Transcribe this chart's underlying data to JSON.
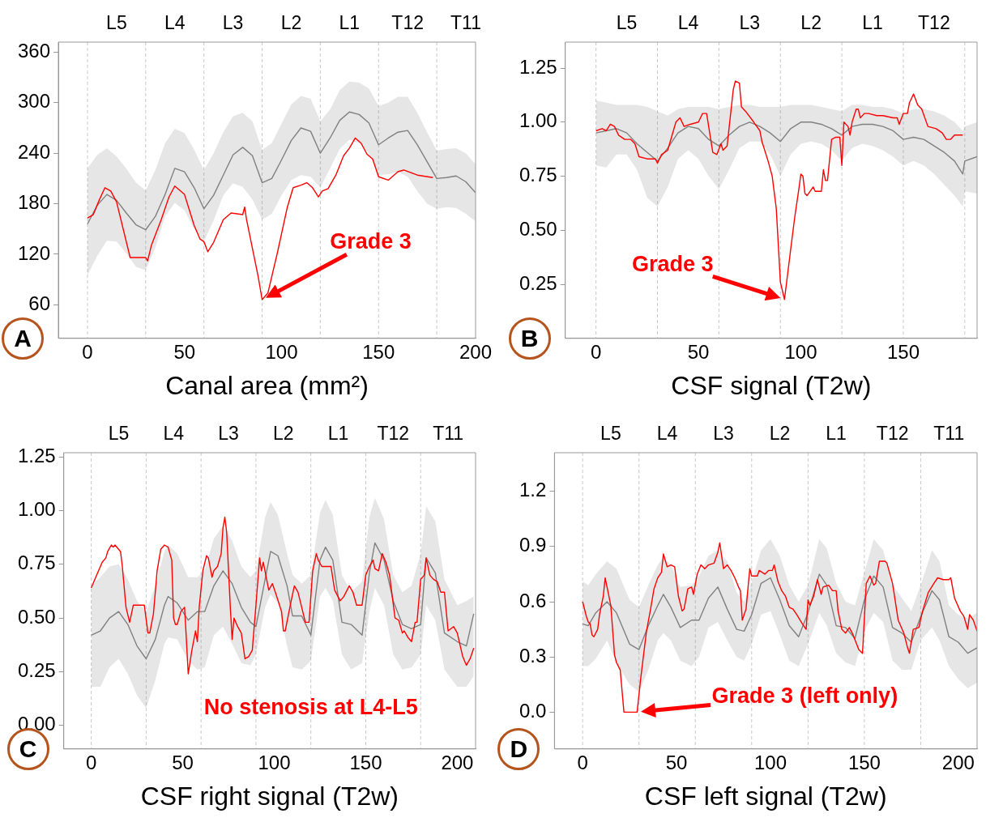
{
  "chart_data": [
    {
      "type": "line",
      "title": "A",
      "xlabel": "Canal area (mm²)",
      "xlim": [
        -15,
        200
      ],
      "xticks": [
        0,
        50,
        100,
        150,
        200
      ],
      "ylim": [
        20,
        372
      ],
      "yticks": [
        60,
        120,
        180,
        240,
        300,
        360
      ],
      "ref_lines": [
        {
          "axis": "x",
          "value": 0,
          "color": "#c8c8c8",
          "line_style": "dashed"
        },
        {
          "axis": "x",
          "value": 30,
          "color": "#c8c8c8",
          "line_style": "dashed"
        },
        {
          "axis": "x",
          "value": 60,
          "color": "#c8c8c8",
          "line_style": "dashed"
        },
        {
          "axis": "x",
          "value": 90,
          "color": "#c8c8c8",
          "line_style": "dashed"
        },
        {
          "axis": "x",
          "value": 120,
          "color": "#c8c8c8",
          "line_style": "dashed"
        },
        {
          "axis": "x",
          "value": 150,
          "color": "#c8c8c8",
          "line_style": "dashed"
        },
        {
          "axis": "x",
          "value": 180,
          "color": "#c8c8c8",
          "line_style": "dashed"
        }
      ],
      "annotations": [
        "Grade 3",
        "L5",
        "L4",
        "L3",
        "L2",
        "L1",
        "T12",
        "T11"
      ],
      "series": [
        {
          "color": "#ff0000",
          "x": [
            0,
            3,
            6,
            9,
            12,
            15,
            22,
            30,
            31,
            33,
            38,
            42,
            45,
            50,
            55,
            58,
            60,
            62,
            65,
            70,
            74,
            80,
            81,
            82,
            88,
            90,
            93,
            98,
            103,
            106,
            110,
            113,
            116,
            119,
            121,
            124,
            128,
            132,
            135,
            138,
            141,
            144,
            147,
            150,
            155,
            160,
            163,
            170,
            178
          ],
          "values": [
            163,
            167,
            184,
            199,
            195,
            182,
            116,
            116,
            112,
            131,
            161,
            188,
            201,
            191,
            154,
            138,
            135,
            123,
            134,
            161,
            169,
            167,
            176,
            161,
            93,
            66,
            74,
            123,
            176,
            199,
            202,
            205,
            199,
            188,
            195,
            198,
            214,
            237,
            246,
            258,
            252,
            239,
            233,
            212,
            208,
            218,
            220,
            214,
            211
          ]
        },
        {
          "color": "#808080",
          "x": [
            0,
            5,
            10,
            15,
            20,
            25,
            30,
            35,
            40,
            45,
            50,
            55,
            60,
            65,
            70,
            75,
            80,
            85,
            90,
            95,
            100,
            105,
            110,
            115,
            120,
            125,
            130,
            135,
            140,
            145,
            150,
            155,
            160,
            165,
            170,
            175,
            180,
            185,
            190,
            195,
            200
          ],
          "values": [
            156,
            178,
            191,
            184,
            169,
            155,
            149,
            165,
            191,
            222,
            218,
            199,
            174,
            190,
            214,
            238,
            247,
            237,
            205,
            210,
            232,
            255,
            270,
            266,
            240,
            258,
            279,
            289,
            286,
            276,
            250,
            258,
            265,
            267,
            250,
            230,
            210,
            211,
            213,
            206,
            193
          ],
          "upper": [
            222,
            238,
            246,
            236,
            222,
            205,
            196,
            220,
            252,
            269,
            264,
            244,
            220,
            240,
            265,
            284,
            288,
            278,
            244,
            252,
            275,
            298,
            308,
            305,
            278,
            292,
            315,
            325,
            324,
            317,
            296,
            300,
            307,
            307,
            288,
            265,
            243,
            245,
            246,
            240,
            227
          ],
          "lower": [
            95,
            118,
            136,
            135,
            121,
            105,
            101,
            128,
            165,
            181,
            172,
            150,
            135,
            160,
            190,
            204,
            200,
            185,
            161,
            168,
            190,
            208,
            214,
            212,
            199,
            222,
            245,
            256,
            252,
            240,
            214,
            215,
            218,
            212,
            195,
            180,
            174,
            176,
            175,
            168,
            159
          ]
        }
      ]
    },
    {
      "type": "line",
      "title": "B",
      "xlabel": "CSF signal (T2w)",
      "xlim": [
        -15,
        186
      ],
      "xticks": [
        0,
        50,
        100,
        150
      ],
      "ylim": [
        0,
        1.37
      ],
      "yticks": [
        {
          "value": 0.25,
          "label": "0.25"
        },
        {
          "value": 0.5,
          "label": "0.50"
        },
        {
          "value": 0.75,
          "label": "0.75"
        },
        {
          "value": 1,
          "label": "1.00"
        },
        {
          "value": 1.25,
          "label": "1.25"
        }
      ],
      "ref_lines": [
        {
          "axis": "x",
          "value": 0,
          "color": "#c8c8c8",
          "line_style": "dashed"
        },
        {
          "axis": "x",
          "value": 30,
          "color": "#c8c8c8",
          "line_style": "dashed"
        },
        {
          "axis": "x",
          "value": 60,
          "color": "#c8c8c8",
          "line_style": "dashed"
        },
        {
          "axis": "x",
          "value": 90,
          "color": "#c8c8c8",
          "line_style": "dashed"
        },
        {
          "axis": "x",
          "value": 120,
          "color": "#c8c8c8",
          "line_style": "dashed"
        },
        {
          "axis": "x",
          "value": 150,
          "color": "#c8c8c8",
          "line_style": "dashed"
        },
        {
          "axis": "x",
          "value": 180,
          "color": "#c8c8c8",
          "line_style": "dashed"
        }
      ],
      "annotations": [
        "Grade 3",
        "L5",
        "L4",
        "L3",
        "L2",
        "L1",
        "T12"
      ],
      "series": [
        {
          "color": "#ff0000",
          "x": [
            0,
            3,
            5,
            7,
            9,
            11,
            14,
            17,
            19,
            21,
            25,
            29,
            30,
            32,
            35,
            39,
            41,
            43,
            46,
            50,
            52,
            54,
            56,
            57,
            59,
            61,
            62,
            64,
            67,
            68,
            70,
            71,
            73,
            77,
            80,
            81,
            84,
            86,
            88,
            89,
            90,
            92,
            95,
            97,
            99,
            100,
            101,
            102,
            103,
            106,
            107,
            110,
            111,
            112,
            113,
            115,
            117,
            119,
            120,
            121,
            123,
            124,
            125,
            127,
            128,
            129,
            131,
            133,
            137,
            140,
            145,
            147,
            148,
            150,
            152,
            153,
            155,
            157,
            159,
            162,
            166,
            169,
            171,
            173,
            175,
            179
          ],
          "values": [
            0.96,
            0.97,
            0.96,
            0.99,
            0.98,
            0.94,
            0.92,
            0.92,
            0.9,
            0.84,
            0.83,
            0.83,
            0.81,
            0.85,
            0.87,
            1.0,
            1.02,
            0.98,
            0.99,
            1.0,
            1.04,
            1.04,
            0.92,
            0.86,
            0.85,
            0.9,
            0.87,
            0.89,
            1.15,
            1.19,
            1.18,
            1.07,
            1.05,
            1.0,
            0.96,
            0.91,
            0.82,
            0.75,
            0.6,
            0.43,
            0.26,
            0.18,
            0.41,
            0.56,
            0.69,
            0.76,
            0.75,
            0.67,
            0.66,
            0.7,
            0.68,
            0.68,
            0.78,
            0.73,
            0.73,
            0.92,
            0.93,
            0.93,
            0.8,
            1.0,
            0.98,
            0.94,
            1.0,
            1.06,
            1.06,
            1.02,
            1.04,
            1.04,
            1.03,
            1.03,
            1.02,
            1.02,
            0.99,
            1.04,
            1.04,
            1.09,
            1.13,
            1.08,
            1.06,
            0.98,
            0.97,
            0.95,
            0.92,
            0.92,
            0.94,
            0.94
          ]
        },
        {
          "color": "#808080",
          "x": [
            0,
            5,
            10,
            15,
            20,
            25,
            30,
            35,
            40,
            45,
            50,
            55,
            60,
            65,
            70,
            75,
            80,
            85,
            90,
            95,
            100,
            105,
            110,
            115,
            120,
            125,
            130,
            135,
            140,
            145,
            150,
            155,
            160,
            165,
            170,
            175,
            179,
            180,
            186
          ],
          "values": [
            0.95,
            0.96,
            0.97,
            0.95,
            0.9,
            0.86,
            0.82,
            0.88,
            0.95,
            0.98,
            0.97,
            0.92,
            0.89,
            0.94,
            0.98,
            1.0,
            0.98,
            0.95,
            0.91,
            0.97,
            1.0,
            1.0,
            0.99,
            0.97,
            0.94,
            0.98,
            0.99,
            0.99,
            0.98,
            0.96,
            0.92,
            0.93,
            0.92,
            0.89,
            0.86,
            0.82,
            0.76,
            0.82,
            0.84
          ],
          "upper": [
            1.1,
            1.09,
            1.08,
            1.08,
            1.08,
            1.07,
            1.05,
            1.03,
            1.06,
            1.07,
            1.07,
            1.07,
            1.06,
            1.07,
            1.08,
            1.08,
            1.07,
            1.07,
            1.07,
            1.08,
            1.08,
            1.08,
            1.07,
            1.06,
            1.05,
            1.08,
            1.08,
            1.07,
            1.07,
            1.06,
            1.04,
            1.06,
            1.06,
            1.05,
            1.03,
            1.0,
            0.96,
            0.98,
            1.0
          ],
          "lower": [
            0.8,
            0.79,
            0.85,
            0.85,
            0.78,
            0.65,
            0.61,
            0.7,
            0.83,
            0.87,
            0.83,
            0.75,
            0.69,
            0.78,
            0.88,
            0.91,
            0.91,
            0.85,
            0.75,
            0.85,
            0.9,
            0.91,
            0.9,
            0.87,
            0.82,
            0.88,
            0.9,
            0.89,
            0.87,
            0.84,
            0.8,
            0.82,
            0.8,
            0.76,
            0.71,
            0.66,
            0.61,
            0.68,
            0.67
          ]
        }
      ]
    },
    {
      "type": "line",
      "title": "C",
      "xlabel": "CSF right signal (T2w)",
      "xlim": [
        -15,
        210
      ],
      "xticks": [
        0,
        50,
        100,
        150,
        200
      ],
      "ylim": [
        -0.11,
        1.27
      ],
      "yticks": [
        {
          "value": 0,
          "label": "0.00"
        },
        {
          "value": 0.25,
          "label": "0.25"
        },
        {
          "value": 0.5,
          "label": "0.50"
        },
        {
          "value": 0.75,
          "label": "0.75"
        },
        {
          "value": 1,
          "label": "1.00"
        },
        {
          "value": 1.25,
          "label": "1.25"
        }
      ],
      "ref_lines": [
        {
          "axis": "x",
          "value": 0,
          "color": "#c8c8c8",
          "line_style": "dashed"
        },
        {
          "axis": "x",
          "value": 30,
          "color": "#c8c8c8",
          "line_style": "dashed"
        },
        {
          "axis": "x",
          "value": 60,
          "color": "#c8c8c8",
          "line_style": "dashed"
        },
        {
          "axis": "x",
          "value": 90,
          "color": "#c8c8c8",
          "line_style": "dashed"
        },
        {
          "axis": "x",
          "value": 120,
          "color": "#c8c8c8",
          "line_style": "dashed"
        },
        {
          "axis": "x",
          "value": 150,
          "color": "#c8c8c8",
          "line_style": "dashed"
        },
        {
          "axis": "x",
          "value": 180,
          "color": "#c8c8c8",
          "line_style": "dashed"
        }
      ],
      "annotations": [
        "No stenosis at L4-L5",
        "L5",
        "L4",
        "L3",
        "L2",
        "L1",
        "T12",
        "T11"
      ],
      "series": [
        {
          "color": "#ff0000",
          "x": [
            0,
            3,
            6,
            8,
            9,
            11,
            12,
            13,
            16,
            17,
            19,
            21,
            23,
            29,
            31,
            32,
            34,
            36,
            38,
            40,
            42,
            44,
            45,
            46,
            47,
            49,
            51,
            52,
            53,
            55,
            57,
            58,
            59,
            61,
            63,
            64,
            66,
            67,
            69,
            71,
            72,
            73,
            74,
            76,
            77,
            78,
            80,
            82,
            84,
            86,
            88,
            90,
            92,
            93,
            94,
            97,
            99,
            101,
            104,
            105,
            106,
            109,
            111,
            113,
            115,
            117,
            119,
            121,
            123,
            124,
            126,
            128,
            131,
            133,
            136,
            138,
            141,
            143,
            145,
            148,
            150,
            152,
            154,
            155,
            157,
            159,
            161,
            163,
            166,
            168,
            170,
            171,
            173,
            175,
            177,
            178,
            180,
            182,
            183,
            185,
            187,
            189,
            191,
            193,
            195,
            198,
            200,
            203,
            205,
            207,
            209
          ],
          "values": [
            0.64,
            0.7,
            0.76,
            0.78,
            0.81,
            0.84,
            0.83,
            0.84,
            0.81,
            0.74,
            0.55,
            0.48,
            0.56,
            0.56,
            0.43,
            0.43,
            0.52,
            0.72,
            0.82,
            0.84,
            0.83,
            0.77,
            0.5,
            0.47,
            0.47,
            0.53,
            0.55,
            0.4,
            0.24,
            0.35,
            0.44,
            0.39,
            0.55,
            0.72,
            0.79,
            0.78,
            0.69,
            0.72,
            0.74,
            0.8,
            0.92,
            0.97,
            0.9,
            0.55,
            0.4,
            0.5,
            0.46,
            0.43,
            0.31,
            0.32,
            0.35,
            0.56,
            0.78,
            0.72,
            0.76,
            0.63,
            0.66,
            0.61,
            0.53,
            0.44,
            0.44,
            0.57,
            0.65,
            0.62,
            0.55,
            0.48,
            0.48,
            0.72,
            0.8,
            0.77,
            0.74,
            0.74,
            0.74,
            0.63,
            0.58,
            0.6,
            0.65,
            0.62,
            0.56,
            0.56,
            0.7,
            0.74,
            0.77,
            0.73,
            0.72,
            0.8,
            0.76,
            0.7,
            0.5,
            0.49,
            0.43,
            0.44,
            0.41,
            0.39,
            0.48,
            0.48,
            0.68,
            0.7,
            0.78,
            0.7,
            0.68,
            0.67,
            0.62,
            0.62,
            0.44,
            0.46,
            0.43,
            0.32,
            0.28,
            0.31,
            0.36
          ]
        },
        {
          "color": "#808080",
          "x": [
            0,
            5,
            10,
            15,
            20,
            25,
            30,
            35,
            40,
            42,
            47,
            53,
            58,
            62,
            67,
            72,
            77,
            82,
            87,
            90,
            95,
            98,
            102,
            107,
            110,
            115,
            120,
            125,
            128,
            132,
            137,
            142,
            148,
            152,
            155,
            160,
            165,
            170,
            175,
            180,
            183,
            188,
            193,
            200,
            205,
            209
          ],
          "values": [
            0.42,
            0.44,
            0.5,
            0.53,
            0.47,
            0.37,
            0.31,
            0.4,
            0.56,
            0.6,
            0.57,
            0.49,
            0.53,
            0.53,
            0.65,
            0.72,
            0.66,
            0.55,
            0.48,
            0.46,
            0.68,
            0.81,
            0.79,
            0.65,
            0.51,
            0.51,
            0.42,
            0.77,
            0.83,
            0.77,
            0.48,
            0.47,
            0.42,
            0.71,
            0.85,
            0.77,
            0.58,
            0.47,
            0.45,
            0.47,
            0.78,
            0.71,
            0.43,
            0.39,
            0.37,
            0.52
          ],
          "upper": [
            0.65,
            0.69,
            0.74,
            0.75,
            0.68,
            0.58,
            0.53,
            0.65,
            0.81,
            0.84,
            0.8,
            0.69,
            0.69,
            0.72,
            0.87,
            0.93,
            0.86,
            0.74,
            0.69,
            0.72,
            0.97,
            1.04,
            0.98,
            0.8,
            0.7,
            0.66,
            0.7,
            0.99,
            1.05,
            0.98,
            0.7,
            0.62,
            0.67,
            0.97,
            1.06,
            0.96,
            0.7,
            0.62,
            0.65,
            0.8,
            1.02,
            0.95,
            0.68,
            0.56,
            0.58,
            0.6
          ],
          "lower": [
            0.18,
            0.18,
            0.27,
            0.31,
            0.24,
            0.14,
            0.08,
            0.21,
            0.38,
            0.41,
            0.4,
            0.3,
            0.26,
            0.27,
            0.42,
            0.46,
            0.38,
            0.29,
            0.28,
            0.33,
            0.55,
            0.61,
            0.57,
            0.37,
            0.27,
            0.26,
            0.3,
            0.6,
            0.64,
            0.58,
            0.33,
            0.26,
            0.29,
            0.53,
            0.64,
            0.56,
            0.33,
            0.26,
            0.27,
            0.33,
            0.56,
            0.49,
            0.26,
            0.18,
            0.18,
            0.23
          ]
        }
      ]
    },
    {
      "type": "line",
      "title": "D",
      "xlabel": "CSF left signal (T2w)",
      "xlim": [
        -15,
        210
      ],
      "xticks": [
        0,
        50,
        100,
        150,
        200
      ],
      "ylim": [
        -0.2,
        1.41
      ],
      "yticks": [
        {
          "value": 0,
          "label": "0.0"
        },
        {
          "value": 0.3,
          "label": "0.3"
        },
        {
          "value": 0.6,
          "label": "0.6"
        },
        {
          "value": 0.9,
          "label": "0.9"
        },
        {
          "value": 1.2,
          "label": "1.2"
        }
      ],
      "ref_lines": [
        {
          "axis": "x",
          "value": 0,
          "color": "#c8c8c8",
          "line_style": "dashed"
        },
        {
          "axis": "x",
          "value": 30,
          "color": "#c8c8c8",
          "line_style": "dashed"
        },
        {
          "axis": "x",
          "value": 60,
          "color": "#c8c8c8",
          "line_style": "dashed"
        },
        {
          "axis": "x",
          "value": 90,
          "color": "#c8c8c8",
          "line_style": "dashed"
        },
        {
          "axis": "x",
          "value": 120,
          "color": "#c8c8c8",
          "line_style": "dashed"
        },
        {
          "axis": "x",
          "value": 150,
          "color": "#c8c8c8",
          "line_style": "dashed"
        },
        {
          "axis": "x",
          "value": 180,
          "color": "#c8c8c8",
          "line_style": "dashed"
        }
      ],
      "annotations": [
        "Grade 3 (left only)",
        "L5",
        "L4",
        "L3",
        "L2",
        "L1",
        "T12",
        "T11"
      ],
      "series": [
        {
          "color": "#ff0000",
          "x": [
            0,
            2,
            3,
            4,
            5,
            6,
            8,
            9,
            11,
            12,
            13,
            15,
            17,
            18,
            20,
            22,
            29,
            31,
            34,
            36,
            38,
            40,
            42,
            43,
            45,
            47,
            49,
            51,
            53,
            54,
            56,
            58,
            59,
            61,
            63,
            65,
            67,
            70,
            72,
            73,
            75,
            77,
            79,
            81,
            83,
            84,
            85,
            87,
            89,
            90,
            93,
            94,
            97,
            99,
            101,
            102,
            104,
            106,
            108,
            110,
            112,
            114,
            117,
            119,
            120,
            121,
            123,
            125,
            127,
            128,
            131,
            133,
            135,
            136,
            138,
            140,
            142,
            144,
            147,
            149,
            151,
            153,
            155,
            156,
            158,
            161,
            162,
            165,
            168,
            171,
            173,
            174,
            176,
            179,
            181,
            184,
            187,
            189,
            192,
            195,
            196,
            198,
            201,
            203,
            205,
            206,
            208,
            210
          ],
          "values": [
            0.6,
            0.52,
            0.49,
            0.48,
            0.42,
            0.41,
            0.45,
            0.53,
            0.63,
            0.73,
            0.68,
            0.58,
            0.31,
            0.27,
            0.23,
            0,
            0,
            0.19,
            0.44,
            0.55,
            0.67,
            0.73,
            0.76,
            0.86,
            0.79,
            0.8,
            0.79,
            0.63,
            0.55,
            0.56,
            0.67,
            0.68,
            0.64,
            0.75,
            0.8,
            0.78,
            0.8,
            0.81,
            0.87,
            0.92,
            0.78,
            0.8,
            0.77,
            0.73,
            0.68,
            0.66,
            0.5,
            0.56,
            0.78,
            0.74,
            0.74,
            0.77,
            0.75,
            0.77,
            0.77,
            0.8,
            0.71,
            0.66,
            0.63,
            0.57,
            0.56,
            0.53,
            0.48,
            0.45,
            0.61,
            0.58,
            0.63,
            0.72,
            0.64,
            0.68,
            0.69,
            0.66,
            0.66,
            0.55,
            0.45,
            0.43,
            0.46,
            0.42,
            0.34,
            0.32,
            0.7,
            0.74,
            0.69,
            0.7,
            0.82,
            0.82,
            0.81,
            0.7,
            0.5,
            0.43,
            0.35,
            0.32,
            0.45,
            0.46,
            0.55,
            0.65,
            0.7,
            0.73,
            0.72,
            0.72,
            0.73,
            0.62,
            0.55,
            0.52,
            0.45,
            0.53,
            0.5,
            0.44
          ]
        },
        {
          "color": "#808080",
          "x": [
            0,
            3,
            7,
            13,
            18,
            25,
            30,
            35,
            40,
            43,
            47,
            52,
            58,
            62,
            67,
            72,
            77,
            82,
            86,
            90,
            95,
            100,
            105,
            110,
            115,
            120,
            126,
            130,
            135,
            140,
            145,
            150,
            155,
            160,
            165,
            170,
            175,
            180,
            186,
            190,
            195,
            200,
            205,
            210
          ],
          "values": [
            0.48,
            0.47,
            0.54,
            0.6,
            0.54,
            0.37,
            0.34,
            0.47,
            0.58,
            0.64,
            0.57,
            0.46,
            0.5,
            0.5,
            0.62,
            0.68,
            0.56,
            0.45,
            0.44,
            0.53,
            0.7,
            0.73,
            0.61,
            0.47,
            0.41,
            0.54,
            0.75,
            0.69,
            0.47,
            0.46,
            0.4,
            0.61,
            0.74,
            0.68,
            0.46,
            0.43,
            0.38,
            0.52,
            0.66,
            0.61,
            0.41,
            0.38,
            0.32,
            0.35
          ],
          "upper": [
            0.71,
            0.69,
            0.75,
            0.82,
            0.78,
            0.61,
            0.57,
            0.69,
            0.8,
            0.84,
            0.8,
            0.68,
            0.69,
            0.74,
            0.85,
            0.88,
            0.82,
            0.65,
            0.6,
            0.71,
            0.88,
            0.94,
            0.85,
            0.69,
            0.6,
            0.69,
            0.94,
            0.89,
            0.7,
            0.6,
            0.58,
            0.76,
            0.94,
            0.88,
            0.69,
            0.62,
            0.55,
            0.69,
            0.88,
            0.82,
            0.58,
            0.53,
            0.51,
            0.54
          ],
          "lower": [
            0.25,
            0.25,
            0.29,
            0.39,
            0.27,
            0.15,
            0.11,
            0.23,
            0.39,
            0.43,
            0.39,
            0.28,
            0.25,
            0.3,
            0.46,
            0.49,
            0.39,
            0.3,
            0.28,
            0.37,
            0.53,
            0.55,
            0.42,
            0.28,
            0.25,
            0.37,
            0.54,
            0.47,
            0.32,
            0.27,
            0.25,
            0.44,
            0.54,
            0.49,
            0.28,
            0.23,
            0.23,
            0.39,
            0.46,
            0.39,
            0.25,
            0.18,
            0.13,
            0.16
          ]
        }
      ]
    }
  ]
}
